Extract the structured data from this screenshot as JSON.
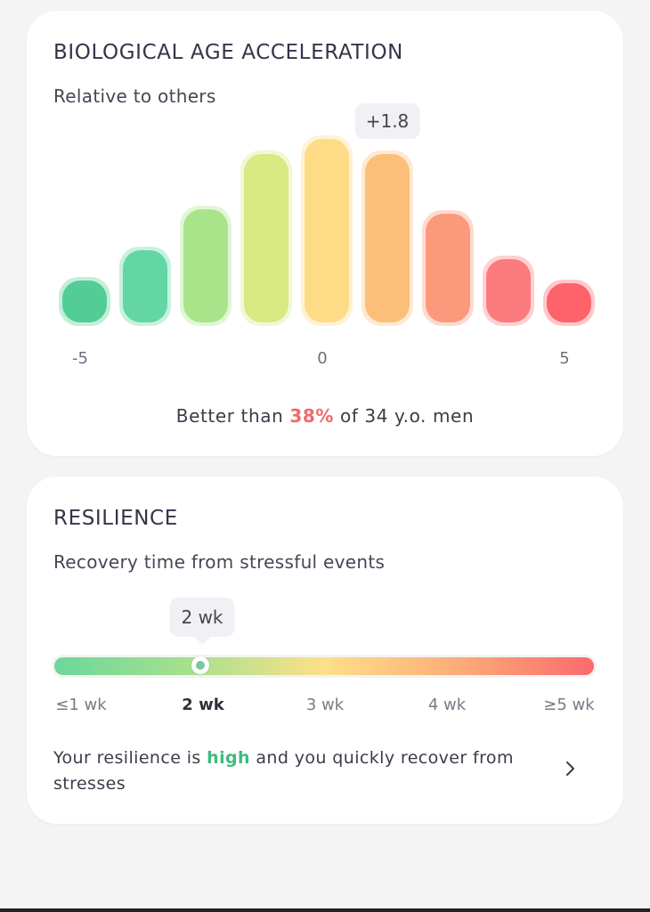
{
  "age_card": {
    "title": "BIOLOGICAL AGE ACCELERATION",
    "subtitle": "Relative to others",
    "value_tooltip": "+1.8",
    "selected_bar_index": 5,
    "ticks": [
      {
        "label": "-5",
        "bar_index": 0
      },
      {
        "label": "0",
        "bar_index": 4
      },
      {
        "label": "5",
        "bar_index": 8
      }
    ],
    "better_than": {
      "prefix": "Better than ",
      "percent": "38%",
      "suffix": " of 34 y.o. men"
    }
  },
  "chart_data": {
    "type": "bar",
    "title": "",
    "categories": [
      "-5",
      "",
      "",
      "",
      "0",
      "",
      "",
      "",
      "5"
    ],
    "values": [
      0.19,
      0.33,
      0.52,
      0.77,
      0.84,
      0.77,
      0.5,
      0.29,
      0.18
    ],
    "colors": [
      "#52cd96",
      "#62d6a4",
      "#a8e489",
      "#d9e984",
      "#fedb87",
      "#fbbf7a",
      "#fb997c",
      "#fb7b7f",
      "#fe626a"
    ],
    "highlighted_category_index": 5,
    "highlight_label": "+1.8"
  },
  "resilience_card": {
    "title": "RESILIENCE",
    "subtitle": "Recovery time from stressful events",
    "tooltip": "2 wk",
    "marker_position": 0.27,
    "ticks": [
      "≤1 wk",
      "2 wk",
      "3 wk",
      "4 wk",
      "≥5 wk"
    ],
    "active_tick_index": 1,
    "summary": {
      "prefix": "Your resilience is ",
      "highlight": "high",
      "suffix": " and you quickly recover from stresses"
    },
    "chevron_icon": "chevron-right-icon"
  }
}
